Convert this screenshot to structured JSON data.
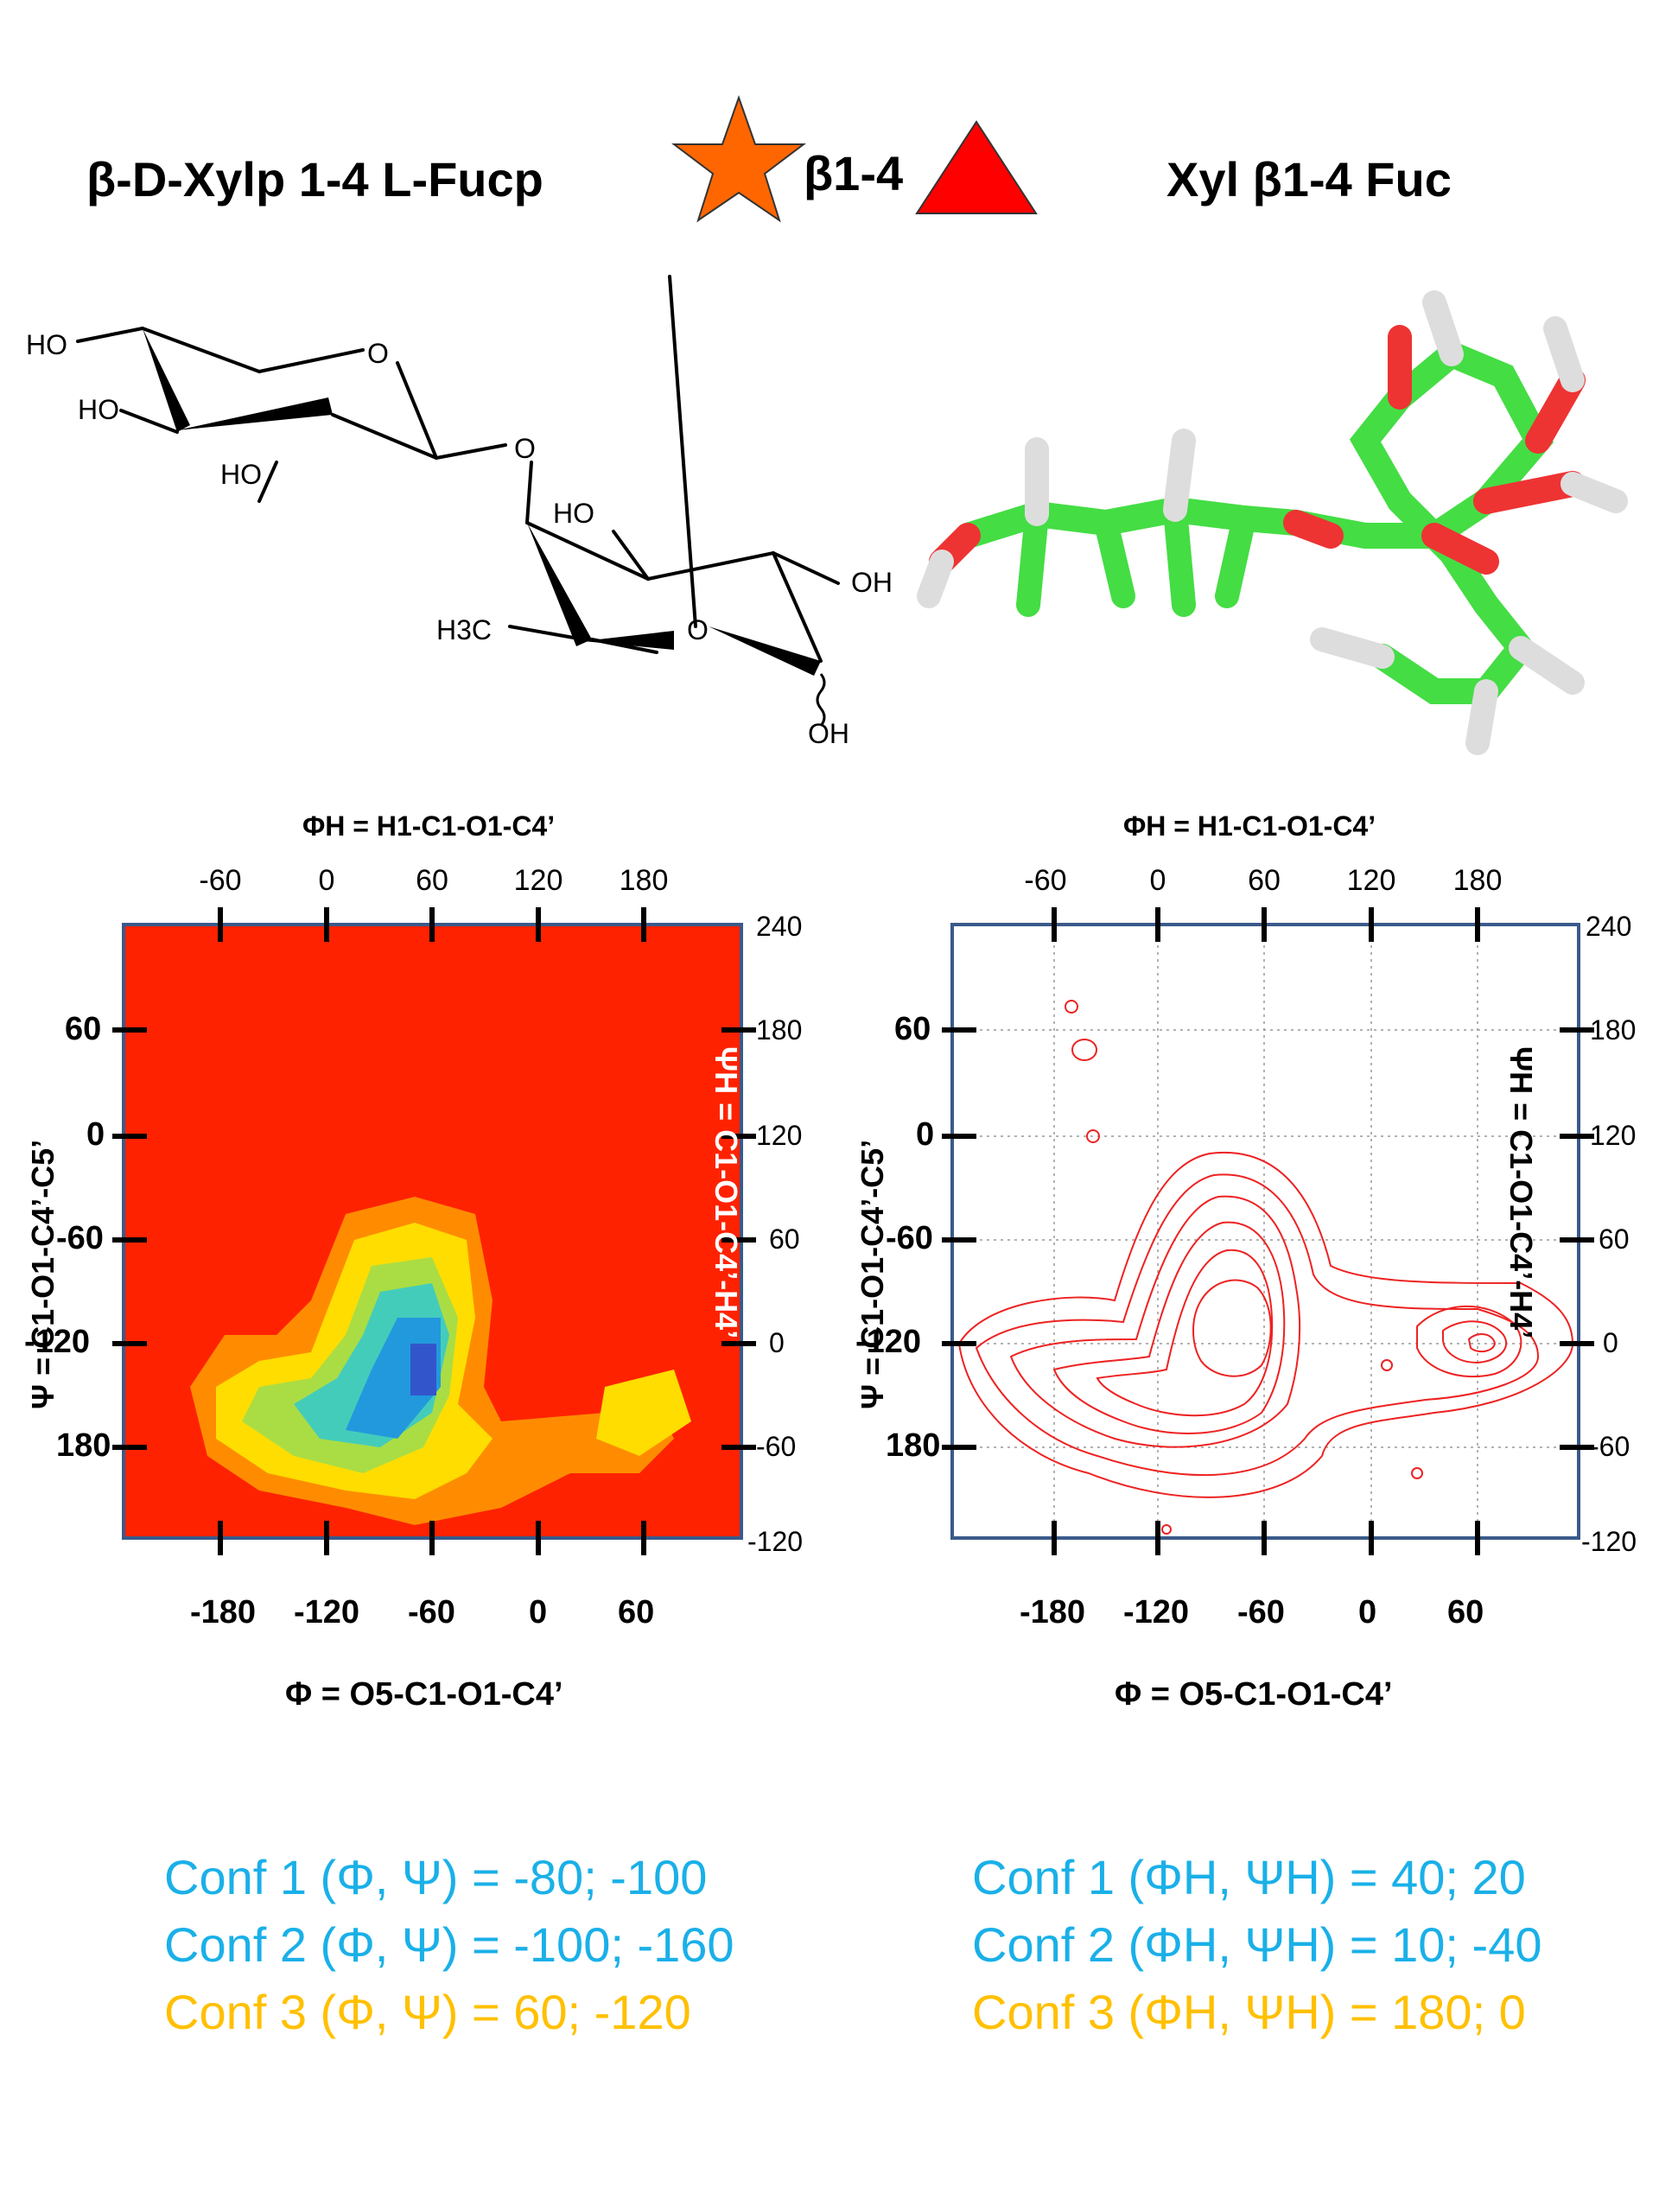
{
  "header": {
    "left": "β-D-Xylp 1-4 L-Fucp",
    "link": "β1-4",
    "right": "Xyl β1-4 Fuc"
  },
  "symbols": {
    "star_color": "#ff6600",
    "triangle_color": "#ff0000"
  },
  "structure_labels": {
    "ho1": "HO",
    "ho2": "HO",
    "ho3": "HO",
    "o_ring1": "O",
    "o_link": "O",
    "ho4": "HO",
    "oh1": "OH",
    "h3c": "H3C",
    "o_ring2": "O",
    "oh2": "OH"
  },
  "plots": {
    "top_label": "ΦH = H1-C1-O1-C4’",
    "bottom_label": "Φ = O5-C1-O1-C4’",
    "left_label": "Ψ = C1-O1-C4’-C5’",
    "right_label": "ΨH = C1-O1-C4’-H4’",
    "bottom_ticks": [
      "-180",
      "-120",
      "-60",
      "0",
      "60"
    ],
    "top_ticks": [
      "-60",
      "0",
      "60",
      "120",
      "180"
    ],
    "left_ticks": [
      "60",
      "0",
      "-60",
      "-120",
      "180"
    ],
    "right_ticks": [
      "240",
      "180",
      "120",
      "60",
      "0",
      "-60",
      "-120"
    ]
  },
  "conformations": {
    "left": [
      {
        "text": "Conf 1 (Φ, Ψ) =   -80;  -100",
        "color": "#1ab0e8"
      },
      {
        "text": "Conf 2 (Φ, Ψ) = -100; -160",
        "color": "#1ab0e8"
      },
      {
        "text": "Conf 3 (Φ, Ψ) =    60; -120",
        "color": "#ffc000"
      }
    ],
    "right": [
      {
        "text": "Conf 1 (ΦH, ΨH) = 40; 20",
        "color": "#1ab0e8"
      },
      {
        "text": "Conf 2 (ΦH, ΨH) = 10; -40",
        "color": "#1ab0e8"
      },
      {
        "text": "Conf 3 (ΦH, ΨH) = 180; 0",
        "color": "#ffc000"
      }
    ]
  }
}
